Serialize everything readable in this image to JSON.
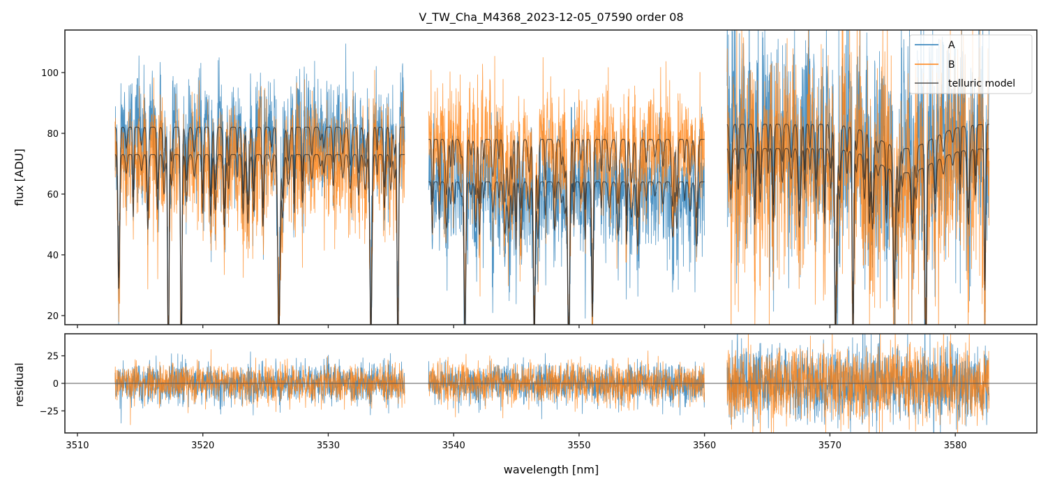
{
  "chart_data": [
    {
      "panel": "spectrum",
      "type": "line",
      "title": "V_TW_Cha_M4368_2023-12-05_07590  order 08",
      "xlabel": "",
      "ylabel": "flux [ADU]",
      "xlim": [
        3509,
        3586.5
      ],
      "ylim": [
        17,
        114
      ],
      "yticks": [
        20,
        40,
        60,
        80,
        100
      ],
      "ytick_labels": [
        "20",
        "40",
        "60",
        "80",
        "100"
      ],
      "xticks": [
        3510,
        3520,
        3530,
        3540,
        3550,
        3560,
        3570,
        3580
      ],
      "grid": false,
      "legend": {
        "placement": "top-right",
        "entries": [
          {
            "label": "A",
            "color": "#1f77b4"
          },
          {
            "label": "B",
            "color": "#ff7f0e"
          },
          {
            "label": "telluric model",
            "color": "#333333"
          }
        ]
      },
      "segments": [
        {
          "x_range": [
            3513.0,
            3536.1
          ],
          "A_continuum": 82,
          "B_continuum": 73,
          "noise_sigma": 10
        },
        {
          "x_range": [
            3538.0,
            3560.0
          ],
          "A_continuum": 64,
          "B_continuum": 78,
          "noise_sigma": 10
        },
        {
          "x_range": [
            3561.8,
            3582.7
          ],
          "A_continuum": 83,
          "B_continuum": 75,
          "noise_sigma": 18
        }
      ],
      "series": [
        {
          "name": "A",
          "color": "#1f77b4",
          "description": "noisy spectrum of component A"
        },
        {
          "name": "B",
          "color": "#ff7f0e",
          "description": "noisy spectrum of component B"
        },
        {
          "name": "telluric model",
          "color": "#333333",
          "description": "telluric model fitted to A and B, with deep absorption lines"
        }
      ]
    },
    {
      "panel": "residual",
      "type": "line",
      "xlabel": "wavelength [nm]",
      "ylabel": "residual",
      "xlim": [
        3509,
        3586.5
      ],
      "ylim": [
        -45,
        45
      ],
      "yticks": [
        -25,
        0,
        25
      ],
      "ytick_labels": [
        "−25",
        "0",
        "25"
      ],
      "xticks": [
        3510,
        3520,
        3530,
        3540,
        3550,
        3560,
        3570,
        3580
      ],
      "xtick_labels": [
        "3510",
        "3520",
        "3530",
        "3540",
        "3550",
        "3560",
        "3570",
        "3580"
      ],
      "zero_line": 0,
      "grid": false,
      "segments": [
        {
          "x_range": [
            3513.0,
            3536.1
          ],
          "noise_sigma": 9
        },
        {
          "x_range": [
            3538.0,
            3560.0
          ],
          "noise_sigma": 9
        },
        {
          "x_range": [
            3561.8,
            3582.7
          ],
          "noise_sigma": 17
        }
      ],
      "series": [
        {
          "name": "A",
          "color": "#1f77b4"
        },
        {
          "name": "B",
          "color": "#ff7f0e"
        }
      ]
    }
  ]
}
